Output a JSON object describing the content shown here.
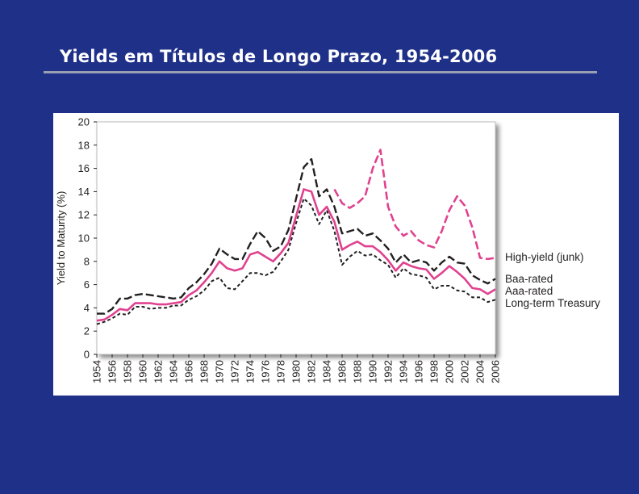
{
  "slide": {
    "title": "Yields em Títulos de Longo Prazo, 1954-2006"
  },
  "chart_data": {
    "type": "line",
    "title": "",
    "xlabel": "",
    "ylabel": "Yield to Maturity (%)",
    "xlim": [
      1954,
      2006
    ],
    "ylim": [
      0,
      20
    ],
    "grid": false,
    "legend_position": "right",
    "y_ticks": [
      "0",
      "2",
      "4",
      "6",
      "8",
      "10",
      "12",
      "14",
      "16",
      "18",
      "20"
    ],
    "x_ticks": [
      "1954",
      "1956",
      "1958",
      "1960",
      "1962",
      "1964",
      "1966",
      "1968",
      "1970",
      "1972",
      "1974",
      "1976",
      "1978",
      "1980",
      "1982",
      "1984",
      "1986",
      "1988",
      "1990",
      "1992",
      "1994",
      "1996",
      "1998",
      "2000",
      "2002",
      "2004",
      "2006"
    ],
    "x": [
      1954,
      1955,
      1956,
      1957,
      1958,
      1959,
      1960,
      1961,
      1962,
      1963,
      1964,
      1965,
      1966,
      1967,
      1968,
      1969,
      1970,
      1971,
      1972,
      1973,
      1974,
      1975,
      1976,
      1977,
      1978,
      1979,
      1980,
      1981,
      1982,
      1983,
      1984,
      1985,
      1986,
      1987,
      1988,
      1989,
      1990,
      1991,
      1992,
      1993,
      1994,
      1995,
      1996,
      1997,
      1998,
      1999,
      2000,
      2001,
      2002,
      2003,
      2004,
      2005,
      2006
    ],
    "series": [
      {
        "name": "High-yield (junk)",
        "color": "#e0428f",
        "dash": "long-dash",
        "values": [
          null,
          null,
          null,
          null,
          null,
          null,
          null,
          null,
          null,
          null,
          null,
          null,
          null,
          null,
          null,
          null,
          null,
          null,
          null,
          null,
          null,
          null,
          null,
          null,
          null,
          null,
          null,
          null,
          null,
          null,
          null,
          14.2,
          13.0,
          12.6,
          13.0,
          13.6,
          16.0,
          17.6,
          12.7,
          11.0,
          10.2,
          10.6,
          9.8,
          9.4,
          9.2,
          10.6,
          12.4,
          13.6,
          12.8,
          10.9,
          8.3,
          8.2,
          8.3
        ]
      },
      {
        "name": "Baa-rated",
        "color": "#231f20",
        "dash": "long-dash",
        "values": [
          3.5,
          3.5,
          3.9,
          4.8,
          4.8,
          5.1,
          5.2,
          5.1,
          5.0,
          4.9,
          4.8,
          4.9,
          5.7,
          6.2,
          6.9,
          7.8,
          9.1,
          8.6,
          8.2,
          8.2,
          9.5,
          10.6,
          10.0,
          8.9,
          9.3,
          10.7,
          13.4,
          16.1,
          16.8,
          13.6,
          14.2,
          12.7,
          10.4,
          10.6,
          10.8,
          10.2,
          10.4,
          9.8,
          9.1,
          7.9,
          8.6,
          7.9,
          8.1,
          7.9,
          7.2,
          7.9,
          8.4,
          7.9,
          7.8,
          6.8,
          6.4,
          6.1,
          6.5
        ]
      },
      {
        "name": "Aaa-rated",
        "color": "#e0428f",
        "dash": "solid",
        "values": [
          2.9,
          3.0,
          3.4,
          3.9,
          3.8,
          4.4,
          4.4,
          4.4,
          4.3,
          4.3,
          4.4,
          4.5,
          5.1,
          5.5,
          6.2,
          7.0,
          8.0,
          7.4,
          7.2,
          7.4,
          8.6,
          8.8,
          8.4,
          8.0,
          8.7,
          9.6,
          11.9,
          14.2,
          14.0,
          12.0,
          12.7,
          11.4,
          9.0,
          9.4,
          9.7,
          9.3,
          9.3,
          8.8,
          8.1,
          7.2,
          7.9,
          7.6,
          7.4,
          7.3,
          6.5,
          7.0,
          7.6,
          7.1,
          6.5,
          5.7,
          5.6,
          5.2,
          5.6
        ]
      },
      {
        "name": "Long-term Treasury",
        "color": "#231f20",
        "dash": "short-dash",
        "values": [
          2.6,
          2.8,
          3.1,
          3.5,
          3.4,
          4.1,
          4.1,
          3.9,
          4.0,
          4.0,
          4.2,
          4.2,
          4.7,
          5.0,
          5.5,
          6.3,
          6.6,
          5.7,
          5.6,
          6.3,
          7.0,
          7.0,
          6.8,
          7.1,
          8.0,
          9.0,
          11.3,
          13.4,
          12.8,
          11.2,
          12.4,
          10.6,
          7.7,
          8.4,
          8.9,
          8.5,
          8.6,
          8.1,
          7.7,
          6.6,
          7.4,
          6.9,
          6.8,
          6.6,
          5.6,
          5.9,
          5.9,
          5.5,
          5.4,
          4.9,
          4.9,
          4.5,
          4.7
        ]
      }
    ],
    "legend": [
      {
        "label": "High-yield (junk)"
      },
      {
        "label": "Baa-rated"
      },
      {
        "label": "Aaa-rated"
      },
      {
        "label": "Long-term Treasury"
      }
    ]
  }
}
